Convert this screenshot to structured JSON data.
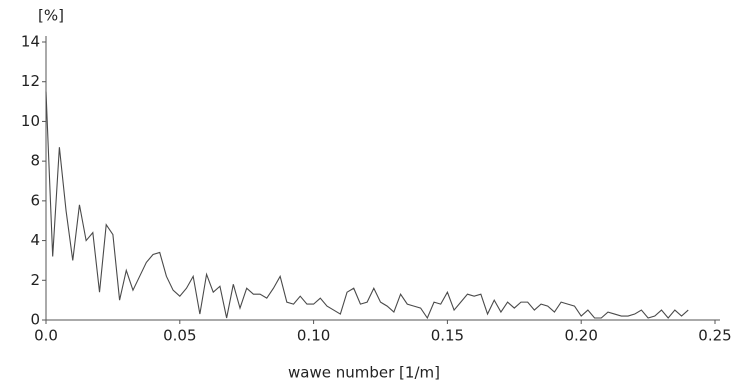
{
  "chart_data": {
    "type": "line",
    "y_axis_label": "[%]",
    "x_axis_label": "wawe number [1/m]",
    "xlim": [
      0,
      0.25
    ],
    "xticks": [
      {
        "value": 0,
        "label": "0.0"
      },
      0.05,
      {
        "value": 0.1,
        "label": "0.10"
      },
      0.15,
      {
        "value": 0.2,
        "label": "0.20"
      },
      0.25
    ],
    "ylim": [
      0,
      14
    ],
    "yticks": [
      0,
      2,
      4,
      6,
      8,
      10,
      12,
      14
    ],
    "color": "#4a4a4a",
    "x": [
      0,
      0.0025,
      0.005,
      0.0075,
      0.01,
      0.0125,
      0.015,
      0.0175,
      0.02,
      0.0225,
      0.025,
      0.0275,
      0.03,
      0.0325,
      0.035,
      0.0375,
      0.04,
      0.0425,
      0.045,
      0.0475,
      0.05,
      0.0525,
      0.055,
      0.0575,
      0.06,
      0.0625,
      0.065,
      0.0675,
      0.07,
      0.0725,
      0.075,
      0.0775,
      0.08,
      0.0825,
      0.085,
      0.0875,
      0.09,
      0.0925,
      0.095,
      0.0975,
      0.1,
      0.1025,
      0.105,
      0.1075,
      0.11,
      0.1125,
      0.115,
      0.1175,
      0.12,
      0.1225,
      0.125,
      0.1275,
      0.13,
      0.1325,
      0.135,
      0.1375,
      0.14,
      0.1425,
      0.145,
      0.1475,
      0.15,
      0.1525,
      0.155,
      0.1575,
      0.16,
      0.1625,
      0.165,
      0.1675,
      0.17,
      0.1725,
      0.175,
      0.1775,
      0.18,
      0.1825,
      0.185,
      0.1875,
      0.19,
      0.1925,
      0.195,
      0.1975,
      0.2,
      0.2025,
      0.205,
      0.2075,
      0.21,
      0.2125,
      0.215,
      0.2175,
      0.22,
      0.2225,
      0.225,
      0.2275,
      0.23,
      0.2325,
      0.235,
      0.2375,
      0.24
    ],
    "values": [
      11.5,
      3.2,
      8.7,
      5.5,
      3.0,
      5.8,
      4.0,
      4.4,
      1.4,
      4.8,
      4.3,
      1.0,
      2.5,
      1.5,
      2.2,
      2.9,
      3.3,
      3.4,
      2.2,
      1.5,
      1.2,
      1.6,
      2.2,
      0.3,
      2.3,
      1.4,
      1.7,
      0.1,
      1.8,
      0.6,
      1.6,
      1.3,
      1.3,
      1.1,
      1.6,
      2.2,
      0.9,
      0.8,
      1.2,
      0.8,
      0.8,
      1.1,
      0.7,
      0.5,
      0.3,
      1.4,
      1.6,
      0.8,
      0.9,
      1.6,
      0.9,
      0.7,
      0.4,
      1.3,
      0.8,
      0.7,
      0.6,
      0.1,
      0.9,
      0.8,
      1.4,
      0.5,
      0.9,
      1.3,
      1.2,
      1.3,
      0.3,
      1.0,
      0.4,
      0.9,
      0.6,
      0.9,
      0.9,
      0.5,
      0.8,
      0.7,
      0.4,
      0.9,
      0.8,
      0.7,
      0.2,
      0.5,
      0.1,
      0.1,
      0.4,
      0.3,
      0.2,
      0.2,
      0.3,
      0.5,
      0.1,
      0.2,
      0.5,
      0.1,
      0.5,
      0.2,
      0.5
    ]
  }
}
